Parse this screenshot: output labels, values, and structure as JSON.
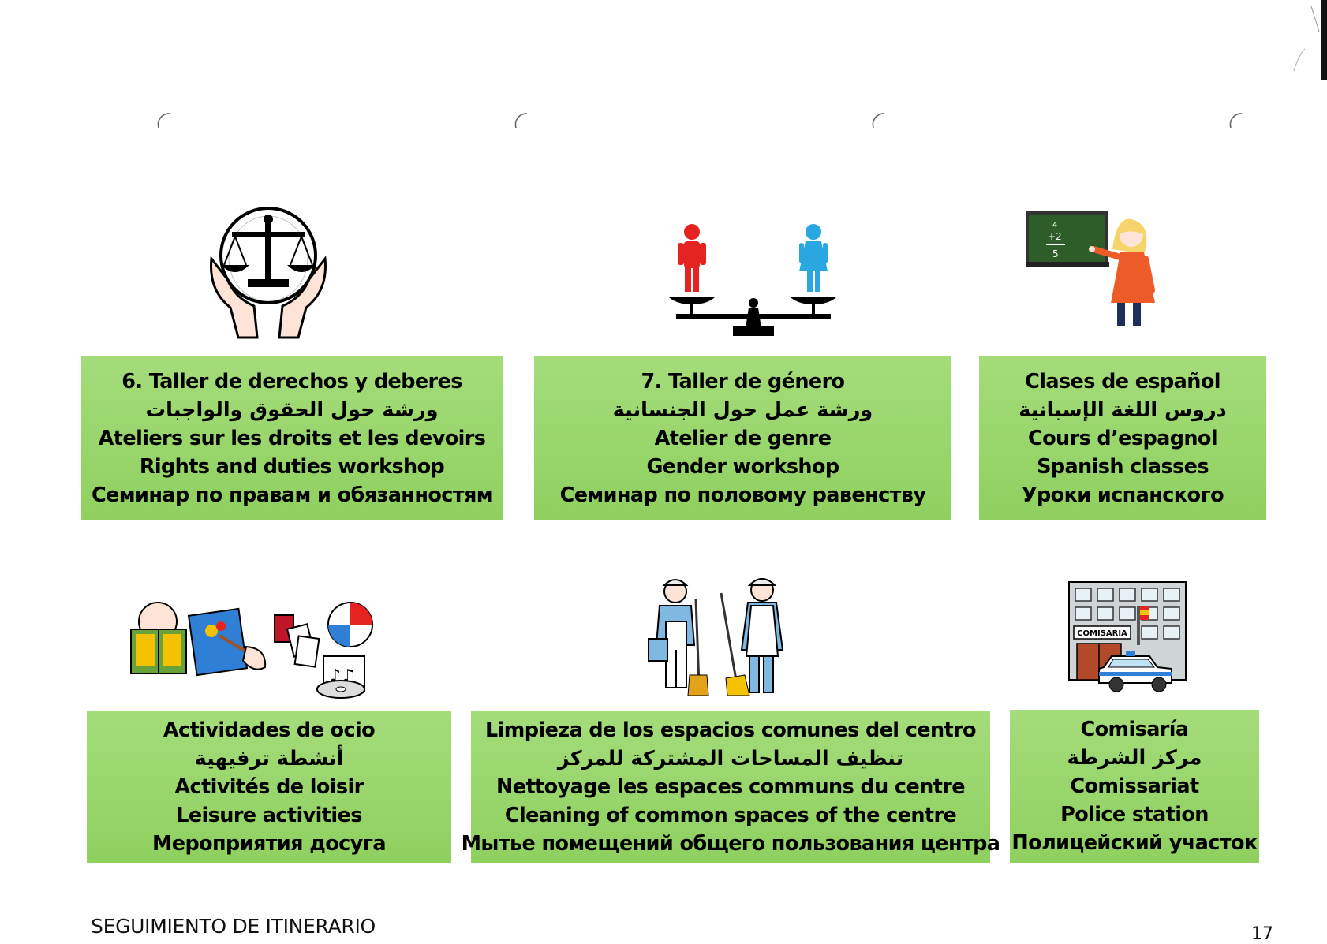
{
  "cards": [
    {
      "icon": "justice-scale-hands-icon",
      "lines": [
        "6.  Taller de derechos y deberes",
        "ورشة حول الحقوق والواجبات",
        "Ateliers sur les droits et les devoirs",
        "Rights and duties workshop",
        "Семинар по правам и обязанностям"
      ]
    },
    {
      "icon": "gender-balance-scale-icon",
      "lines": [
        "7. Taller de género",
        "ورشة عمل حول الجنسانية",
        "Atelier de genre",
        "Gender workshop",
        "Семинар по половому  равенству"
      ]
    },
    {
      "icon": "teacher-blackboard-icon",
      "lines": [
        "Clases de español",
        "دروس اللغة الإسبانية",
        "Cours d’espagnol",
        "Spanish classes",
        "Уроки испанского"
      ]
    },
    {
      "icon": "leisure-activities-icon",
      "lines": [
        "Actividades de ocio",
        "أنشطة ترفيهية",
        "Activités de loisir",
        "Leisure activities",
        "Мероприятия досуга"
      ]
    },
    {
      "icon": "cleaning-workers-icon",
      "lines": [
        "Limpieza de los espacios comunes del centro",
        "تنظيف المساحات المشتركة للمركز",
        "Nettoyage les espaces communs du centre",
        "Cleaning of common spaces of the centre",
        "Мытье помещений общего пользования центра"
      ]
    },
    {
      "icon": "police-station-icon",
      "lines": [
        "Comisaría",
        "مركز الشرطة",
        "Comissariat",
        "Police station",
        "Полицейский участок"
      ]
    }
  ],
  "icon_text": {
    "blackboard_math": [
      "4",
      "+2",
      "5"
    ],
    "police_sign": "COMISARÍA"
  },
  "footer": {
    "title": "SEGUIMIENTO DE ITINERARIO",
    "page_number": "17"
  },
  "colors": {
    "box_green": "#95d468",
    "red_figure": "#e52421",
    "blue_figure": "#2aa6e0"
  }
}
